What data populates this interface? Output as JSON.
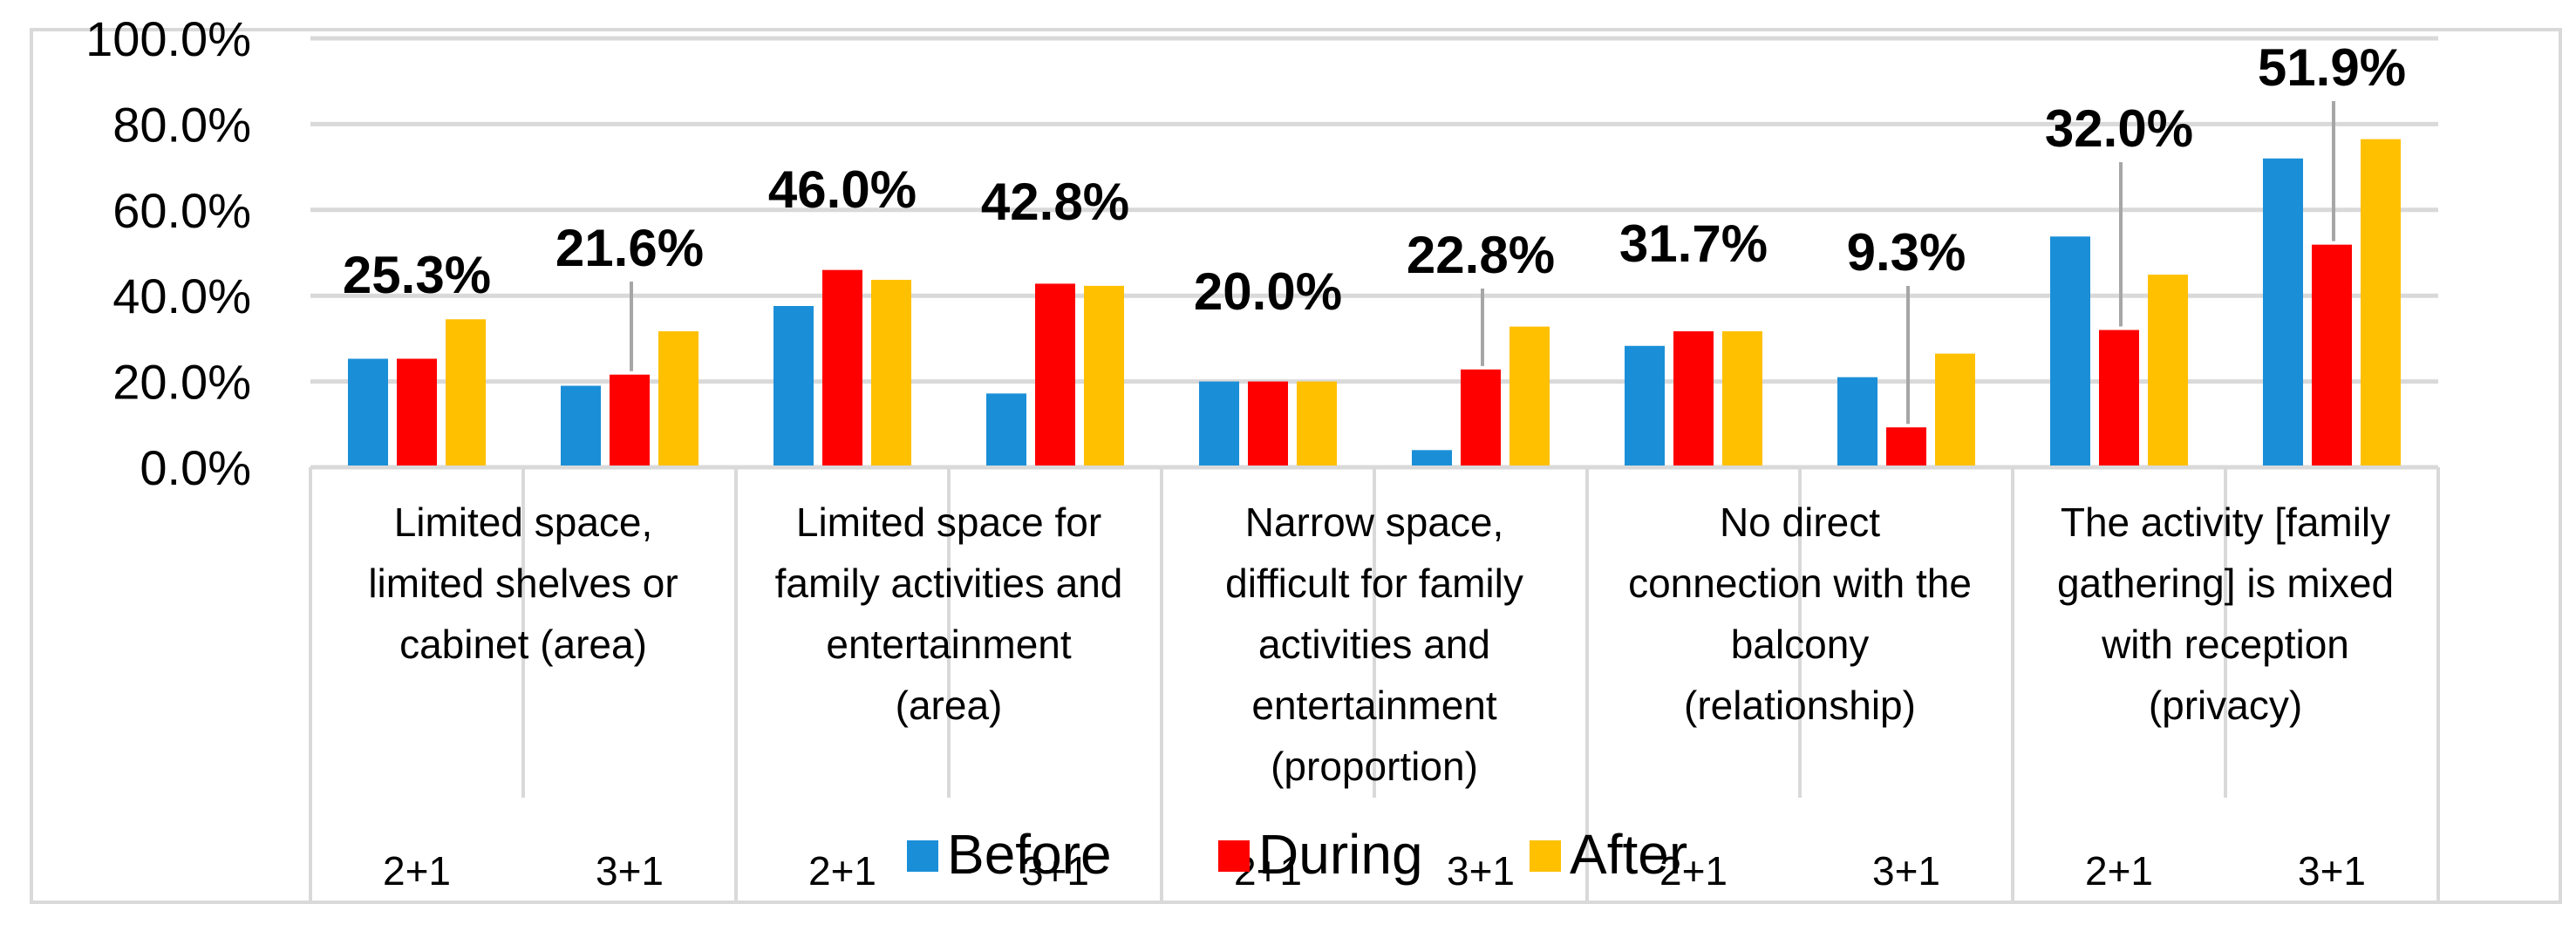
{
  "chart_data": {
    "type": "bar",
    "title": "",
    "xlabel": "",
    "ylabel": "",
    "ylim": [
      0,
      100
    ],
    "y_ticks": [
      "0.0%",
      "20.0%",
      "40.0%",
      "60.0%",
      "80.0%",
      "100.0%"
    ],
    "gridlines": true,
    "legend_position": "bottom",
    "groups": [
      {
        "label": [
          "Limited space,",
          "limited shelves or",
          "cabinet (area)"
        ]
      },
      {
        "label": [
          "Limited space for",
          "family activities and",
          "entertainment",
          "(area)"
        ]
      },
      {
        "label": [
          "Narrow space,",
          "difficult for family",
          "activities and",
          "entertainment",
          "(proportion)"
        ]
      },
      {
        "label": [
          "No direct",
          "connection with the",
          "balcony",
          "(relationship)"
        ]
      },
      {
        "label": [
          "The activity [family",
          "gathering] is mixed",
          "with reception",
          "(privacy)"
        ]
      }
    ],
    "categories": [
      "2+1",
      "3+1",
      "2+1",
      "3+1",
      "2+1",
      "3+1",
      "2+1",
      "3+1",
      "2+1",
      "3+1"
    ],
    "series": [
      {
        "name": "Before",
        "color": "#1a8fd8",
        "values": [
          25.3,
          19.0,
          37.6,
          17.2,
          20.0,
          4.0,
          28.3,
          21.0,
          53.8,
          72.0
        ]
      },
      {
        "name": "During",
        "color": "#ff0000",
        "values": [
          25.3,
          21.6,
          46.0,
          42.8,
          20.0,
          22.8,
          31.7,
          9.3,
          32.0,
          51.9
        ]
      },
      {
        "name": "After",
        "color": "#ffc000",
        "values": [
          34.5,
          31.7,
          43.7,
          42.3,
          20.0,
          32.8,
          31.7,
          26.5,
          44.9,
          76.5
        ]
      }
    ],
    "data_labels": [
      "25.3%",
      "21.6%",
      "46.0%",
      "42.8%",
      "20.0%",
      "22.8%",
      "31.7%",
      "9.3%",
      "32.0%",
      "51.9%"
    ]
  }
}
